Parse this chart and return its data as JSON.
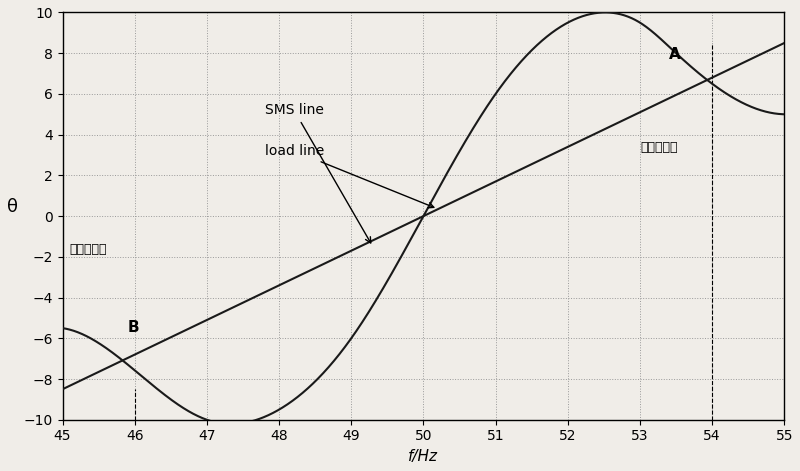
{
  "xlim": [
    45,
    55
  ],
  "ylim": [
    -10,
    10
  ],
  "xticks": [
    45,
    46,
    47,
    48,
    49,
    50,
    51,
    52,
    53,
    54,
    55
  ],
  "yticks": [
    -10,
    -8,
    -6,
    -4,
    -2,
    0,
    2,
    4,
    6,
    8,
    10
  ],
  "xlabel": "f/Hz",
  "ylabel": "θ",
  "grid_color": "#999999",
  "background_color": "#f0ede8",
  "line_color": "#1a1a1a",
  "sms_label": "SMS line",
  "load_label": "load line",
  "annotation_A": "A",
  "annotation_B": "B",
  "chinese_right": "平衡工作点",
  "chinese_left": "平衡工作点",
  "point_A": [
    54.0,
    8.5
  ],
  "point_B": [
    46.0,
    -8.5
  ],
  "load_slope": 1.7,
  "figsize": [
    8.0,
    4.71
  ],
  "dpi": 100
}
